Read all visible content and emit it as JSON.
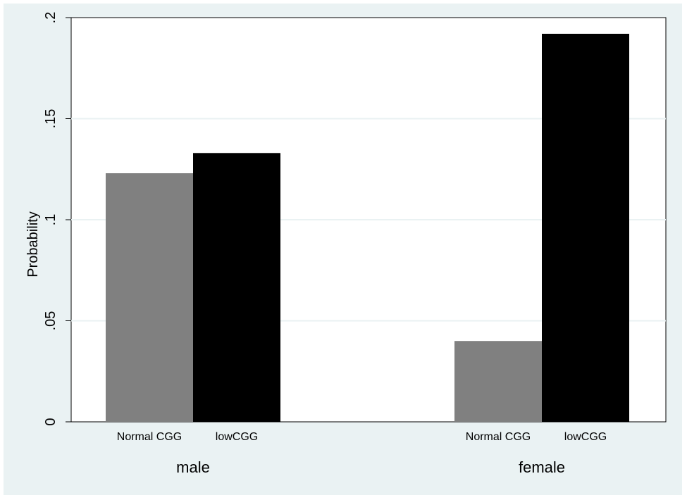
{
  "chart_data": {
    "type": "bar",
    "ylabel": "Probability",
    "ylim": [
      0,
      0.2
    ],
    "yticks": [
      {
        "value": 0,
        "label": "0"
      },
      {
        "value": 0.05,
        "label": ".05"
      },
      {
        "value": 0.1,
        "label": ".1"
      },
      {
        "value": 0.15,
        "label": ".15"
      },
      {
        "value": 0.2,
        "label": ".2"
      }
    ],
    "grid": true,
    "groups": [
      {
        "label": "male",
        "bars": [
          {
            "label": "Normal CGG",
            "value": 0.123,
            "color": "#808080"
          },
          {
            "label": "lowCGG",
            "value": 0.133,
            "color": "#000000"
          }
        ]
      },
      {
        "label": "female",
        "bars": [
          {
            "label": "Normal CGG",
            "value": 0.04,
            "color": "#808080"
          },
          {
            "label": "lowCGG",
            "value": 0.192,
            "color": "#000000"
          }
        ]
      }
    ],
    "colors": {
      "background": "#eaf2f3",
      "plot_area": "#ffffff",
      "gridline": "#eaf2f3"
    }
  }
}
